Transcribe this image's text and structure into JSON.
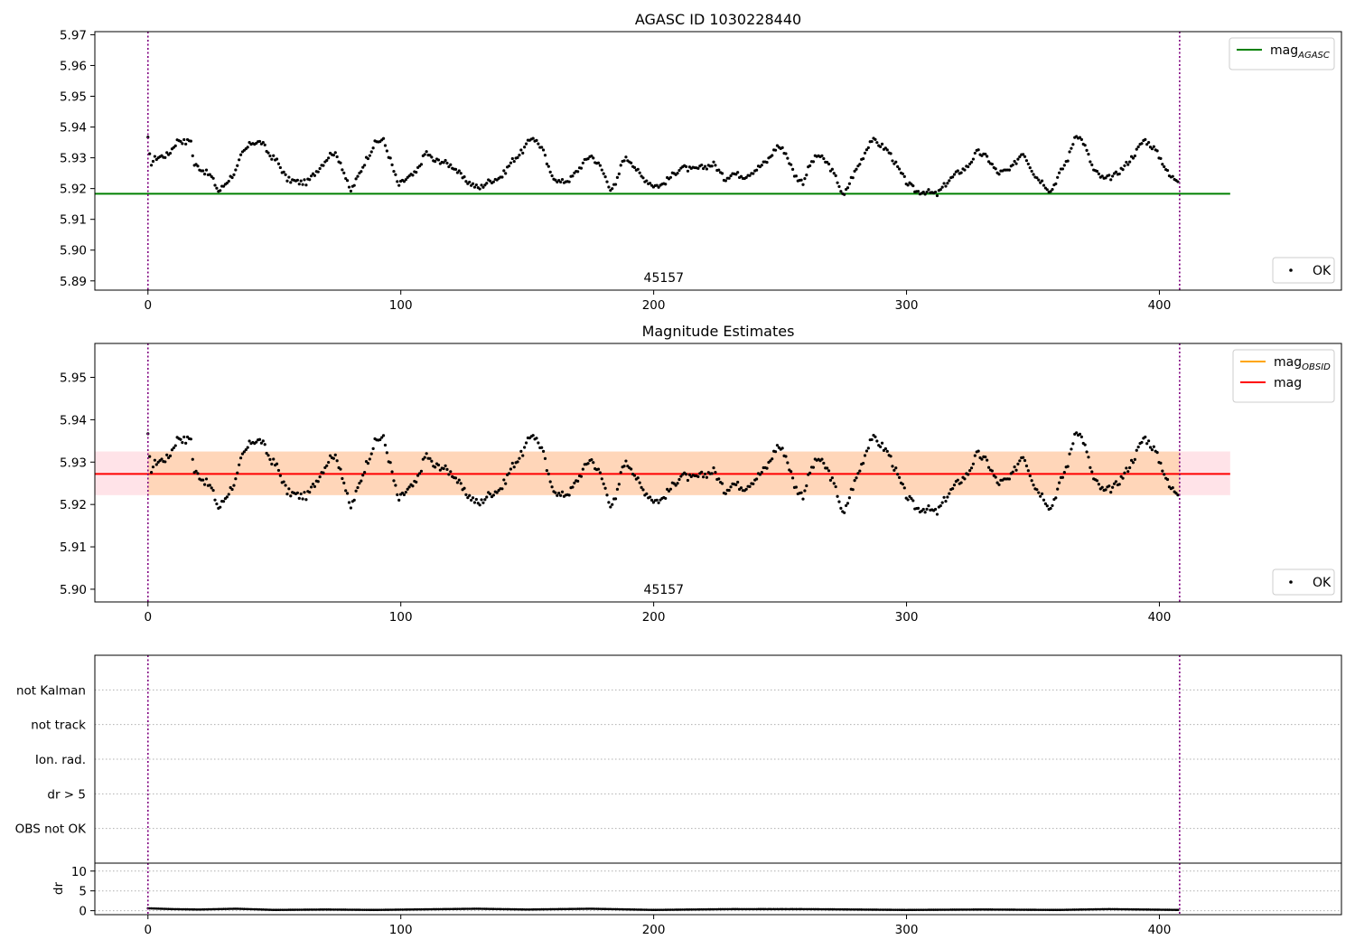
{
  "chart_data": [
    {
      "type": "scatter",
      "title": "AGASC ID 1030228440",
      "xlim": [
        -21,
        472
      ],
      "ylim": [
        5.887,
        5.971
      ],
      "xticks": [
        0,
        100,
        200,
        300,
        400
      ],
      "yticks": [
        5.89,
        5.9,
        5.91,
        5.92,
        5.93,
        5.94,
        5.95,
        5.96,
        5.97
      ],
      "ytick_labels": [
        "5.89",
        "5.90",
        "5.91",
        "5.92",
        "5.93",
        "5.94",
        "5.95",
        "5.96",
        "5.97"
      ],
      "obsid_label": "45157",
      "obsid_label_x": 204,
      "obs_bounds": [
        0,
        408
      ],
      "line_legend": [
        {
          "name": "mag",
          "subscript": "AGASC",
          "color": "#008000"
        }
      ],
      "points_legend": {
        "name": "OK"
      },
      "hline": {
        "y": 5.9183,
        "x_range": [
          -21,
          428
        ],
        "color": "#008000"
      },
      "series": [
        {
          "name": "OK",
          "color": "#000000",
          "x_start": 0,
          "x_end": 408,
          "anchors": [
            [
              0,
              5.936
            ],
            [
              1,
              5.928
            ],
            [
              3,
              5.93
            ],
            [
              8,
              5.931
            ],
            [
              12,
              5.936
            ],
            [
              15,
              5.935
            ],
            [
              17,
              5.936
            ],
            [
              18,
              5.928
            ],
            [
              20,
              5.927
            ],
            [
              25,
              5.924
            ],
            [
              28,
              5.919
            ],
            [
              30,
              5.921
            ],
            [
              32,
              5.923
            ],
            [
              35,
              5.926
            ],
            [
              37,
              5.931
            ],
            [
              41,
              5.935
            ],
            [
              45,
              5.935
            ],
            [
              48,
              5.931
            ],
            [
              51,
              5.929
            ],
            [
              55,
              5.923
            ],
            [
              60,
              5.922
            ],
            [
              63,
              5.922
            ],
            [
              67,
              5.926
            ],
            [
              70,
              5.929
            ],
            [
              73,
              5.932
            ],
            [
              76,
              5.929
            ],
            [
              80,
              5.919
            ],
            [
              82,
              5.922
            ],
            [
              86,
              5.929
            ],
            [
              90,
              5.935
            ],
            [
              93,
              5.936
            ],
            [
              96,
              5.929
            ],
            [
              99,
              5.921
            ],
            [
              102,
              5.923
            ],
            [
              106,
              5.925
            ],
            [
              110,
              5.932
            ],
            [
              113,
              5.929
            ],
            [
              116,
              5.929
            ],
            [
              121,
              5.927
            ],
            [
              125,
              5.923
            ],
            [
              131,
              5.92
            ],
            [
              134,
              5.922
            ],
            [
              140,
              5.924
            ],
            [
              144,
              5.929
            ],
            [
              148,
              5.932
            ],
            [
              152,
              5.937
            ],
            [
              156,
              5.933
            ],
            [
              159,
              5.925
            ],
            [
              163,
              5.922
            ],
            [
              167,
              5.923
            ],
            [
              171,
              5.927
            ],
            [
              175,
              5.931
            ],
            [
              179,
              5.927
            ],
            [
              183,
              5.92
            ],
            [
              185,
              5.921
            ],
            [
              188,
              5.93
            ],
            [
              191,
              5.929
            ],
            [
              195,
              5.924
            ],
            [
              200,
              5.921
            ],
            [
              203,
              5.921
            ],
            [
              207,
              5.924
            ],
            [
              211,
              5.927
            ],
            [
              215,
              5.926
            ],
            [
              220,
              5.927
            ],
            [
              224,
              5.928
            ],
            [
              228,
              5.923
            ],
            [
              231,
              5.925
            ],
            [
              236,
              5.924
            ],
            [
              240,
              5.926
            ],
            [
              245,
              5.929
            ],
            [
              249,
              5.934
            ],
            [
              252,
              5.932
            ],
            [
              256,
              5.924
            ],
            [
              259,
              5.922
            ],
            [
              262,
              5.928
            ],
            [
              265,
              5.931
            ],
            [
              269,
              5.928
            ],
            [
              273,
              5.922
            ],
            [
              275,
              5.917
            ],
            [
              278,
              5.923
            ],
            [
              282,
              5.929
            ],
            [
              286,
              5.936
            ],
            [
              290,
              5.934
            ],
            [
              293,
              5.932
            ],
            [
              297,
              5.926
            ],
            [
              300,
              5.922
            ],
            [
              304,
              5.919
            ],
            [
              308,
              5.919
            ],
            [
              312,
              5.918
            ],
            [
              316,
              5.922
            ],
            [
              320,
              5.925
            ],
            [
              324,
              5.927
            ],
            [
              328,
              5.932
            ],
            [
              332,
              5.93
            ],
            [
              336,
              5.925
            ],
            [
              341,
              5.926
            ],
            [
              346,
              5.932
            ],
            [
              351,
              5.924
            ],
            [
              354,
              5.922
            ],
            [
              357,
              5.919
            ],
            [
              360,
              5.924
            ],
            [
              364,
              5.93
            ],
            [
              367,
              5.938
            ],
            [
              370,
              5.935
            ],
            [
              374,
              5.926
            ],
            [
              378,
              5.923
            ],
            [
              382,
              5.924
            ],
            [
              386,
              5.927
            ],
            [
              390,
              5.931
            ],
            [
              394,
              5.936
            ],
            [
              398,
              5.933
            ],
            [
              401,
              5.929
            ],
            [
              404,
              5.924
            ],
            [
              407,
              5.923
            ]
          ]
        }
      ]
    },
    {
      "type": "scatter",
      "title": "Magnitude Estimates",
      "xlim": [
        -21,
        472
      ],
      "ylim": [
        5.897,
        5.958
      ],
      "xticks": [
        0,
        100,
        200,
        300,
        400
      ],
      "yticks": [
        5.9,
        5.91,
        5.92,
        5.93,
        5.94,
        5.95
      ],
      "ytick_labels": [
        "5.90",
        "5.91",
        "5.92",
        "5.93",
        "5.94",
        "5.95"
      ],
      "obsid_label": "45157",
      "obsid_label_x": 204,
      "obs_bounds": [
        0,
        408
      ],
      "line_legend": [
        {
          "name": "mag",
          "subscript": "OBSID",
          "color": "#ffa500"
        },
        {
          "name": "mag",
          "subscript": "",
          "color": "#ff0000"
        }
      ],
      "points_legend": {
        "name": "OK"
      },
      "hline": {
        "y": 5.9272,
        "x_range": [
          -21,
          428
        ],
        "color": "#ff0000"
      },
      "obsid_band": {
        "y_range": [
          5.9222,
          5.9325
        ],
        "x_range": [
          0,
          408
        ],
        "color": "#ffa500"
      },
      "overall_band": {
        "y_range": [
          5.9222,
          5.9325
        ],
        "x_range": [
          -21,
          428
        ],
        "color": "#ffc0cb"
      },
      "series": [
        {
          "name": "OK",
          "color": "#000000",
          "x_start": 0,
          "x_end": 408,
          "same_as_panel": 0
        }
      ]
    },
    {
      "type": "scatter",
      "title": "",
      "xlim": [
        -21,
        472
      ],
      "ylim": [
        -0.5,
        5.5
      ],
      "flags": [
        "OBS not OK",
        "dr > 5",
        "Ion. rad.",
        "not track",
        "not Kalman"
      ],
      "obs_bounds": [
        0,
        408
      ]
    },
    {
      "type": "scatter",
      "title": "",
      "xlim": [
        -21,
        472
      ],
      "ylim": [
        -1,
        12
      ],
      "xticks": [
        0,
        100,
        200,
        300,
        400
      ],
      "yticks": [
        0,
        5,
        10
      ],
      "ytick_labels": [
        "0",
        "5",
        "10"
      ],
      "ylabel": "dr",
      "obs_bounds": [
        0,
        408
      ],
      "series": [
        {
          "name": "dr",
          "color": "#000000",
          "x_start": 0,
          "x_end": 408,
          "anchors": [
            [
              0,
              0.6
            ],
            [
              10,
              0.4
            ],
            [
              20,
              0.3
            ],
            [
              35,
              0.5
            ],
            [
              50,
              0.2
            ],
            [
              70,
              0.3
            ],
            [
              90,
              0.2
            ],
            [
              130,
              0.5
            ],
            [
              150,
              0.3
            ],
            [
              175,
              0.5
            ],
            [
              200,
              0.2
            ],
            [
              230,
              0.4
            ],
            [
              260,
              0.4
            ],
            [
              300,
              0.2
            ],
            [
              330,
              0.3
            ],
            [
              360,
              0.2
            ],
            [
              380,
              0.4
            ],
            [
              408,
              0.2
            ]
          ]
        }
      ]
    }
  ]
}
